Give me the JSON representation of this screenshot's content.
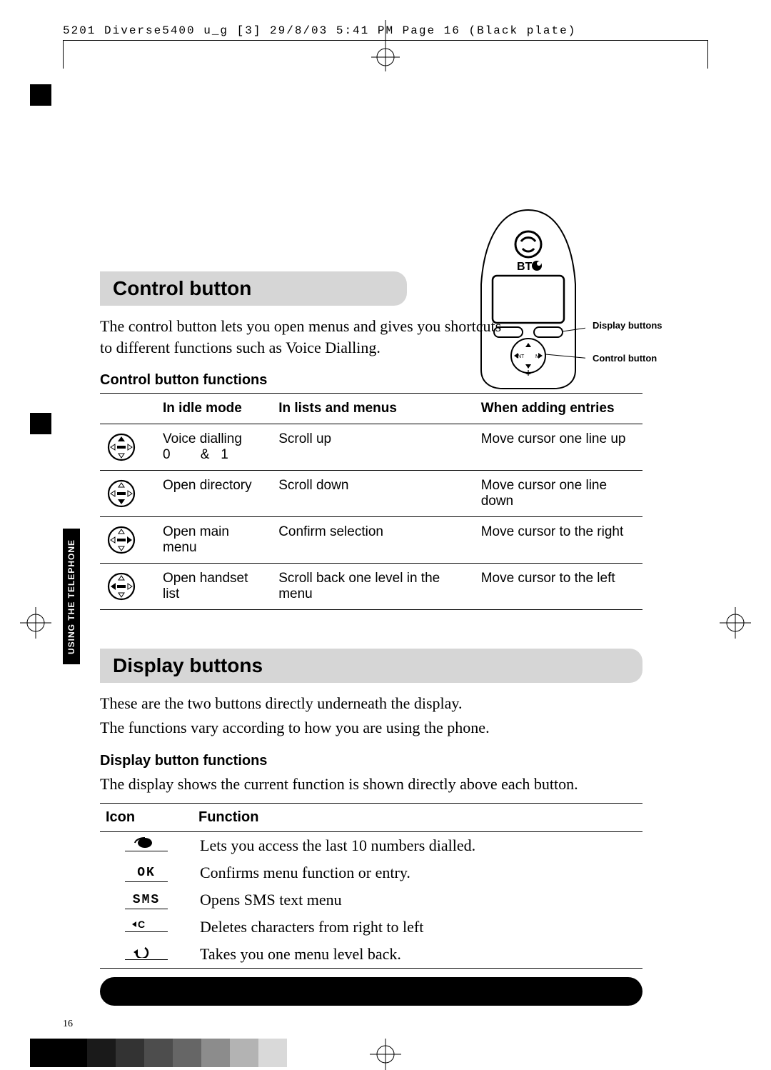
{
  "crop": {
    "header": "5201 Diverse5400  u_g [3]  29/8/03  5:41 PM  Page 16   (Black plate)"
  },
  "side_tab": "USING THE TELEPHONE",
  "page_number": "16",
  "handset": {
    "brand": "BT",
    "label_display": "Display buttons",
    "label_control": "Control button"
  },
  "sections": {
    "control": {
      "title": "Control button",
      "intro": "The control button lets you open menus and gives you shortcuts to different functions such as Voice Dialling.",
      "sub": "Control button functions",
      "table": {
        "columns": [
          "In idle mode",
          "In lists and menus",
          "When adding entries"
        ],
        "rows": [
          {
            "dir": "up",
            "c1a": "Voice dialling",
            "c1b": "0        &   1",
            "c2": "Scroll up",
            "c3": "Move cursor one line up"
          },
          {
            "dir": "down",
            "c1a": "Open directory",
            "c1b": "",
            "c2": "Scroll down",
            "c3": "Move cursor one line down"
          },
          {
            "dir": "right",
            "c1a": "Open main menu",
            "c1b": "",
            "c2": "Confirm selection",
            "c3": "Move cursor to the right"
          },
          {
            "dir": "left",
            "c1a": "Open handset list",
            "c1b": "",
            "c2": "Scroll back one level in the menu",
            "c3": "Move cursor to the left"
          }
        ]
      }
    },
    "display": {
      "title": "Display buttons",
      "intro1": "These are the two buttons directly underneath the display.",
      "intro2": "The functions vary according to how you are using the phone.",
      "sub": "Display button functions",
      "intro3": "The display shows the current function is shown directly above each button.",
      "table": {
        "columns": [
          "Icon",
          "Function"
        ],
        "rows": [
          {
            "icon": "redial",
            "fn": "Lets you access the last 10 numbers dialled."
          },
          {
            "icon": "OK",
            "fn": "Confirms menu function or entry."
          },
          {
            "icon": "SMS",
            "fn": "Opens SMS text menu"
          },
          {
            "icon": "delete",
            "fn": "Deletes characters from right to left"
          },
          {
            "icon": "back",
            "fn": "Takes you one menu level back."
          }
        ]
      }
    }
  },
  "reg_strip_greys": [
    "#000000",
    "#000000",
    "#1a1a1a",
    "#333333",
    "#4d4d4d",
    "#666666",
    "#8c8c8c",
    "#b3b3b3",
    "#d9d9d9"
  ]
}
